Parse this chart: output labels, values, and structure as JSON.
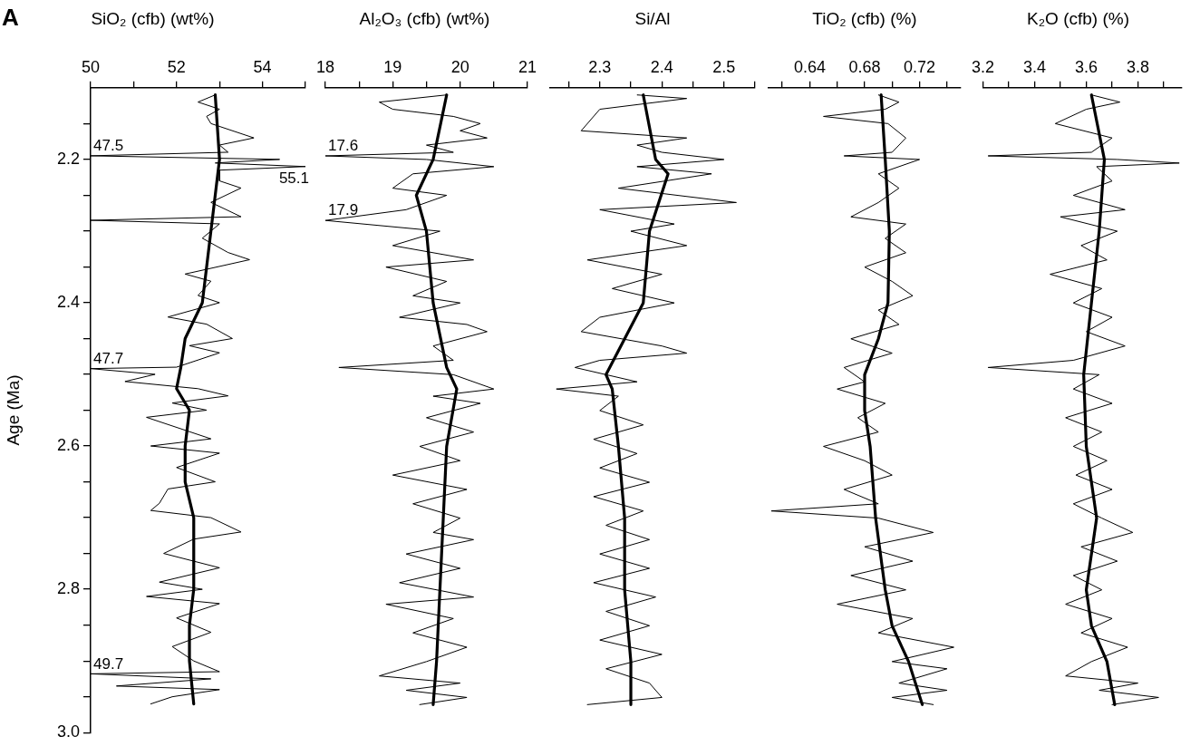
{
  "chart_data": [
    {
      "type": "line",
      "title": "SiO₂ (cfb) (wt%)",
      "ylabel": "Age (Ma)",
      "xlim": [
        50,
        55
      ],
      "xticks": [
        50,
        {
          "value": 51,
          "label": null
        },
        52,
        {
          "value": 53,
          "label": null
        },
        54,
        {
          "value": 55,
          "label": null
        }
      ],
      "ylim": [
        3,
        2.1
      ],
      "yticks": [
        {
          "value": 2.15,
          "label": null
        },
        2.2,
        {
          "value": 2.25,
          "label": null
        },
        {
          "value": 2.3,
          "label": null
        },
        {
          "value": 2.35,
          "label": null
        },
        2.4,
        {
          "value": 2.45,
          "label": null
        },
        {
          "value": 2.5,
          "label": null
        },
        {
          "value": 2.55,
          "label": null
        },
        2.6,
        {
          "value": 2.65,
          "label": null
        },
        {
          "value": 2.7,
          "label": null
        },
        {
          "value": 2.75,
          "label": null
        },
        2.8,
        {
          "value": 2.85,
          "label": null
        },
        {
          "value": 2.9,
          "label": null
        },
        {
          "value": 2.95,
          "label": null
        },
        {
          "value": 3,
          "label": "3.0"
        }
      ],
      "grid": false,
      "legend": false,
      "marker": "none",
      "line_style": "solid",
      "annotations": [
        "A",
        {
          "text": "47.5",
          "x": 50,
          "y": 2.195
        },
        {
          "text": "55.1",
          "x": 55,
          "y": 2.21
        },
        {
          "text": "47.7",
          "x": 50,
          "y": 2.492
        },
        {
          "text": "49.7",
          "x": 50,
          "y": 2.918
        }
      ],
      "series": [
        {
          "color": "#000000",
          "x": [
            52.9,
            52.5,
            53.0,
            52.7,
            52.8,
            53.8,
            53.0,
            53.2,
            50,
            54.4,
            52.9,
            55,
            53.0,
            53.0,
            53.5,
            52.8,
            53.5,
            50,
            53.0,
            52.6,
            53.2,
            53.7,
            52.2,
            52.8,
            52.5,
            53.0,
            51.8,
            52.7,
            53.3,
            52.3,
            53.0,
            52.0,
            50,
            51.5,
            50.8,
            52.5,
            53.2,
            51.9,
            52.7,
            51.3,
            52.3,
            52.8,
            51.4,
            53.0,
            52.0,
            52.9,
            51.8,
            51.6,
            51.4,
            52.8,
            53.5,
            52.4,
            51.7,
            53.0,
            51.6,
            52.6,
            51.3,
            53.0,
            52.0,
            52.8,
            51.9,
            52.4,
            53.0,
            50,
            52.8,
            50.6,
            53.0,
            51.9,
            51.4
          ],
          "values": [
            2.11,
            2.12,
            2.13,
            2.14,
            2.15,
            2.17,
            2.18,
            2.19,
            2.195,
            2.2,
            2.205,
            2.21,
            2.215,
            2.23,
            2.24,
            2.26,
            2.28,
            2.285,
            2.29,
            2.31,
            2.33,
            2.34,
            2.36,
            2.37,
            2.39,
            2.4,
            2.42,
            2.43,
            2.45,
            2.46,
            2.47,
            2.49,
            2.492,
            2.5,
            2.51,
            2.52,
            2.53,
            2.54,
            2.55,
            2.56,
            2.58,
            2.59,
            2.6,
            2.61,
            2.63,
            2.65,
            2.66,
            2.68,
            2.69,
            2.7,
            2.72,
            2.73,
            2.75,
            2.77,
            2.79,
            2.8,
            2.81,
            2.82,
            2.84,
            2.86,
            2.88,
            2.9,
            2.915,
            2.918,
            2.925,
            2.935,
            2.94,
            2.95,
            2.96
          ]
        },
        {
          "color": "#000000",
          "x": [
            52.9,
            53.0,
            52.8,
            52.6,
            52.2,
            52.1,
            52.0,
            52.3,
            52.2,
            52.2,
            52.4,
            52.4,
            52.3,
            52.3,
            52.4
          ],
          "values": [
            2.11,
            2.2,
            2.3,
            2.4,
            2.45,
            2.49,
            2.52,
            2.55,
            2.6,
            2.65,
            2.7,
            2.8,
            2.85,
            2.9,
            2.96
          ]
        }
      ]
    },
    {
      "type": "line",
      "title": "Al₂O₃ (cfb) (wt%)",
      "tick_labels": "x",
      "xlim": [
        18,
        21
      ],
      "xticks": [
        18,
        {
          "value": 18.5,
          "label": null
        },
        19,
        {
          "value": 19.5,
          "label": null
        },
        20,
        {
          "value": 20.5,
          "label": null
        },
        21
      ],
      "ylim": [
        3,
        2.1
      ],
      "grid": false,
      "legend": false,
      "marker": "none",
      "line_style": "solid",
      "annotations": [
        {
          "text": "17.6",
          "x": 18,
          "y": 2.195
        },
        {
          "text": "17.9",
          "x": 18,
          "y": 2.285
        }
      ],
      "series": [
        {
          "color": "#000000",
          "x": [
            19.8,
            18.8,
            19.0,
            19.9,
            20.3,
            20.0,
            20.4,
            19.5,
            19.9,
            18,
            19.5,
            20.5,
            19.3,
            19.0,
            19.8,
            19.2,
            18,
            19.7,
            19.0,
            20.2,
            18.9,
            19.8,
            19.3,
            20.0,
            19.1,
            20.1,
            20.4,
            19.6,
            19.9,
            18.2,
            19.9,
            20.5,
            19.6,
            20.3,
            19.5,
            20.2,
            19.4,
            20.0,
            19.0,
            20.1,
            19.3,
            20.0,
            19.6,
            20.2,
            19.2,
            20.0,
            19.1,
            20.2,
            18.9,
            19.9,
            19.3,
            20.1,
            19.5,
            18.8,
            20.0,
            19.2,
            20.1,
            19.4
          ],
          "values": [
            2.11,
            2.12,
            2.13,
            2.14,
            2.15,
            2.16,
            2.17,
            2.18,
            2.19,
            2.195,
            2.2,
            2.21,
            2.22,
            2.24,
            2.25,
            2.27,
            2.285,
            2.3,
            2.32,
            2.34,
            2.35,
            2.37,
            2.39,
            2.4,
            2.42,
            2.43,
            2.44,
            2.46,
            2.48,
            2.49,
            2.5,
            2.52,
            2.53,
            2.54,
            2.56,
            2.58,
            2.6,
            2.62,
            2.64,
            2.66,
            2.68,
            2.7,
            2.72,
            2.73,
            2.75,
            2.77,
            2.79,
            2.81,
            2.82,
            2.84,
            2.86,
            2.88,
            2.9,
            2.92,
            2.93,
            2.94,
            2.95,
            2.96
          ]
        },
        {
          "color": "#000000",
          "x": [
            19.8,
            19.6,
            19.35,
            19.5,
            19.6,
            19.8,
            19.95,
            19.8,
            19.75,
            19.7,
            19.65,
            19.6
          ],
          "values": [
            2.11,
            2.2,
            2.25,
            2.3,
            2.4,
            2.49,
            2.52,
            2.6,
            2.7,
            2.8,
            2.9,
            2.96
          ]
        }
      ]
    },
    {
      "type": "line",
      "title": "Si/Al",
      "tick_labels": "x",
      "xlim": [
        2.22,
        2.55
      ],
      "xticks": [
        {
          "value": 2.25,
          "label": null
        },
        2.3,
        {
          "value": 2.35,
          "label": null
        },
        2.4,
        {
          "value": 2.45,
          "label": null
        },
        2.5,
        {
          "value": 2.55,
          "label": null
        }
      ],
      "ylim": [
        3,
        2.1
      ],
      "grid": false,
      "legend": false,
      "marker": "none",
      "line_style": "solid",
      "series": [
        {
          "color": "#000000",
          "x": [
            2.36,
            2.44,
            2.3,
            2.27,
            2.44,
            2.36,
            2.4,
            2.5,
            2.36,
            2.48,
            2.33,
            2.52,
            2.3,
            2.42,
            2.35,
            2.44,
            2.28,
            2.4,
            2.32,
            2.42,
            2.3,
            2.27,
            2.4,
            2.44,
            2.3,
            2.26,
            2.36,
            2.23,
            2.33,
            2.3,
            2.37,
            2.29,
            2.36,
            2.3,
            2.38,
            2.29,
            2.37,
            2.31,
            2.38,
            2.3,
            2.38,
            2.29,
            2.39,
            2.31,
            2.38,
            2.3,
            2.4,
            2.31,
            2.38,
            2.4,
            2.28
          ],
          "values": [
            2.11,
            2.115,
            2.13,
            2.16,
            2.17,
            2.18,
            2.19,
            2.2,
            2.21,
            2.22,
            2.24,
            2.26,
            2.27,
            2.29,
            2.3,
            2.32,
            2.34,
            2.36,
            2.38,
            2.4,
            2.42,
            2.44,
            2.46,
            2.47,
            2.48,
            2.49,
            2.51,
            2.52,
            2.53,
            2.55,
            2.57,
            2.59,
            2.61,
            2.63,
            2.65,
            2.67,
            2.69,
            2.71,
            2.73,
            2.75,
            2.77,
            2.79,
            2.81,
            2.83,
            2.85,
            2.87,
            2.89,
            2.91,
            2.93,
            2.95,
            2.96
          ]
        },
        {
          "color": "#000000",
          "x": [
            2.37,
            2.39,
            2.41,
            2.38,
            2.37,
            2.34,
            2.31,
            2.32,
            2.33,
            2.34,
            2.34,
            2.35,
            2.35
          ],
          "values": [
            2.11,
            2.2,
            2.22,
            2.3,
            2.4,
            2.45,
            2.5,
            2.52,
            2.6,
            2.7,
            2.8,
            2.9,
            2.96
          ]
        }
      ]
    },
    {
      "type": "line",
      "title": "TiO₂ (cfb) (%)",
      "tick_labels": "x",
      "xlim": [
        0.61,
        0.75
      ],
      "xticks": [
        {
          "value": 0.62,
          "label": null
        },
        0.64,
        {
          "value": 0.66,
          "label": null
        },
        0.68,
        {
          "value": 0.7,
          "label": null
        },
        0.72,
        {
          "value": 0.74,
          "label": null
        }
      ],
      "ylim": [
        3,
        2.1
      ],
      "grid": false,
      "legend": false,
      "marker": "none",
      "line_style": "solid",
      "series": [
        {
          "color": "#000000",
          "x": [
            0.69,
            0.705,
            0.695,
            0.65,
            0.697,
            0.71,
            0.7,
            0.665,
            0.72,
            0.69,
            0.705,
            0.69,
            0.67,
            0.71,
            0.695,
            0.71,
            0.68,
            0.7,
            0.715,
            0.69,
            0.705,
            0.67,
            0.7,
            0.665,
            0.68,
            0.66,
            0.695,
            0.675,
            0.69,
            0.65,
            0.68,
            0.7,
            0.665,
            0.69,
            0.612,
            0.69,
            0.73,
            0.68,
            0.715,
            0.67,
            0.71,
            0.66,
            0.715,
            0.69,
            0.745,
            0.7,
            0.74,
            0.705,
            0.74,
            0.7,
            0.73
          ],
          "values": [
            2.11,
            2.12,
            2.13,
            2.14,
            2.15,
            2.17,
            2.19,
            2.195,
            2.2,
            2.22,
            2.24,
            2.26,
            2.28,
            2.29,
            2.31,
            2.33,
            2.35,
            2.37,
            2.39,
            2.41,
            2.43,
            2.45,
            2.47,
            2.49,
            2.51,
            2.52,
            2.54,
            2.56,
            2.58,
            2.6,
            2.62,
            2.64,
            2.66,
            2.68,
            2.69,
            2.7,
            2.72,
            2.74,
            2.76,
            2.78,
            2.8,
            2.82,
            2.84,
            2.86,
            2.88,
            2.9,
            2.91,
            2.93,
            2.94,
            2.95,
            2.96
          ]
        },
        {
          "color": "#000000",
          "x": [
            0.692,
            0.695,
            0.698,
            0.697,
            0.69,
            0.68,
            0.68,
            0.684,
            0.688,
            0.695,
            0.7,
            0.712,
            0.722
          ],
          "values": [
            2.11,
            2.2,
            2.3,
            2.4,
            2.45,
            2.5,
            2.55,
            2.6,
            2.7,
            2.8,
            2.85,
            2.9,
            2.96
          ]
        }
      ]
    },
    {
      "type": "line",
      "title": "K₂O (cfb) (%)",
      "tick_labels": "x",
      "xlim": [
        3.2,
        3.97
      ],
      "xticks": [
        3.2,
        {
          "value": 3.3,
          "label": null
        },
        3.4,
        {
          "value": 3.5,
          "label": null
        },
        3.6,
        {
          "value": 3.7,
          "label": null
        },
        3.8,
        {
          "value": 3.9,
          "label": null
        }
      ],
      "ylim": [
        3,
        2.1
      ],
      "grid": false,
      "legend": false,
      "marker": "none",
      "line_style": "solid",
      "series": [
        {
          "color": "#000000",
          "x": [
            3.62,
            3.73,
            3.6,
            3.48,
            3.7,
            3.62,
            3.22,
            3.72,
            3.96,
            3.64,
            3.7,
            3.55,
            3.75,
            3.5,
            3.72,
            3.58,
            3.68,
            3.46,
            3.66,
            3.55,
            3.7,
            3.6,
            3.75,
            3.55,
            3.22,
            3.65,
            3.55,
            3.7,
            3.52,
            3.66,
            3.55,
            3.68,
            3.56,
            3.7,
            3.55,
            3.66,
            3.78,
            3.58,
            3.72,
            3.55,
            3.66,
            3.52,
            3.7,
            3.58,
            3.76,
            3.62,
            3.52,
            3.8,
            3.65,
            3.88,
            3.7
          ],
          "values": [
            2.11,
            2.12,
            2.13,
            2.15,
            2.17,
            2.19,
            2.195,
            2.2,
            2.205,
            2.21,
            2.23,
            2.25,
            2.27,
            2.28,
            2.3,
            2.32,
            2.34,
            2.36,
            2.38,
            2.4,
            2.42,
            2.44,
            2.46,
            2.48,
            2.49,
            2.5,
            2.52,
            2.54,
            2.56,
            2.58,
            2.6,
            2.62,
            2.64,
            2.66,
            2.68,
            2.7,
            2.72,
            2.74,
            2.76,
            2.78,
            2.8,
            2.82,
            2.84,
            2.86,
            2.88,
            2.9,
            2.92,
            2.93,
            2.94,
            2.95,
            2.96
          ]
        },
        {
          "color": "#000000",
          "x": [
            3.62,
            3.67,
            3.65,
            3.62,
            3.59,
            3.6,
            3.62,
            3.64,
            3.6,
            3.62,
            3.68,
            3.71
          ],
          "values": [
            2.11,
            2.2,
            2.3,
            2.4,
            2.5,
            2.6,
            2.65,
            2.7,
            2.8,
            2.85,
            2.9,
            2.96
          ]
        }
      ]
    }
  ]
}
